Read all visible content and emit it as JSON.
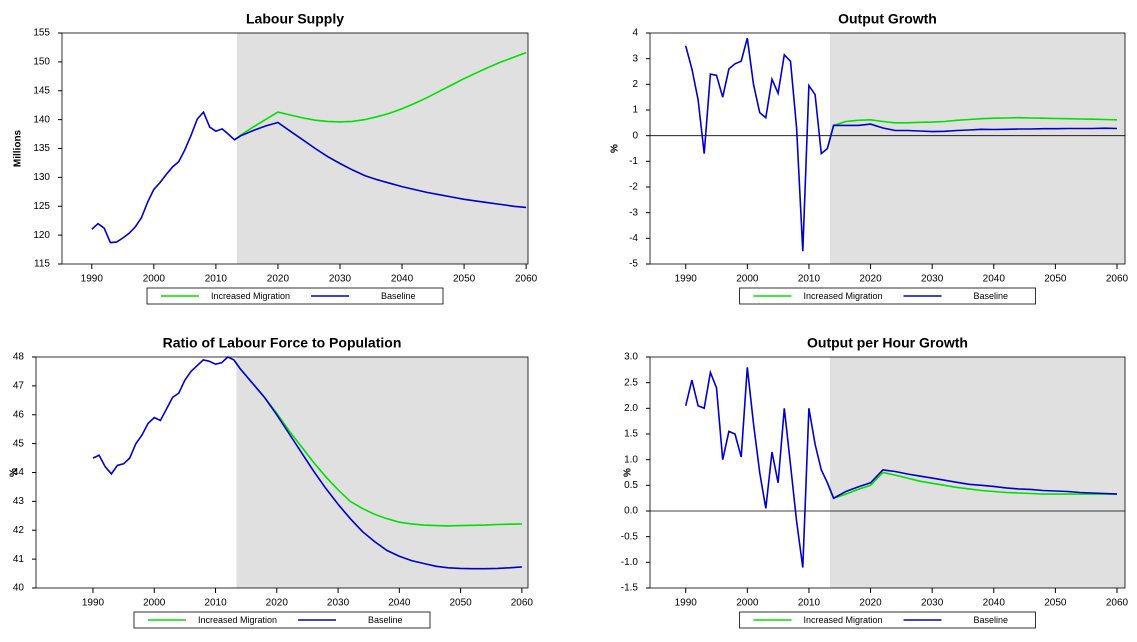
{
  "chart_data": [
    {
      "type": "line",
      "title": "Labour Supply",
      "y_label": "Millions",
      "xlim": [
        1985.2,
        2060.3
      ],
      "ylim": [
        115,
        155
      ],
      "xticks": [
        1990,
        2000,
        2010,
        2020,
        2030,
        2040,
        2050,
        2060
      ],
      "yticks": [
        115,
        120,
        125,
        130,
        135,
        140,
        145,
        150,
        155
      ],
      "shade_from": 2013.4,
      "shade_color": "#e0e0e0",
      "x": [
        1990,
        1991,
        1992,
        1993,
        1994,
        1995,
        1996,
        1997,
        1998,
        1999,
        2000,
        2001,
        2002,
        2003,
        2004,
        2005,
        2006,
        2007,
        2008,
        2009,
        2010,
        2011,
        2012,
        2013,
        2014,
        2016,
        2018,
        2020,
        2022,
        2024,
        2026,
        2028,
        2030,
        2032,
        2034,
        2036,
        2038,
        2040,
        2042,
        2044,
        2046,
        2048,
        2050,
        2052,
        2054,
        2056,
        2058,
        2060
      ],
      "series": [
        {
          "name": "Increased Migration",
          "color": "#00e000",
          "values": [
            null,
            null,
            null,
            null,
            null,
            null,
            null,
            null,
            null,
            null,
            null,
            null,
            null,
            null,
            null,
            null,
            null,
            null,
            null,
            null,
            null,
            null,
            null,
            136.5,
            137.3,
            138.7,
            140.0,
            141.3,
            140.8,
            140.3,
            139.9,
            139.7,
            139.6,
            139.7,
            140.0,
            140.5,
            141.1,
            141.9,
            142.8,
            143.8,
            144.9,
            146.0,
            147.1,
            148.1,
            149.1,
            150.0,
            150.8,
            151.6
          ]
        },
        {
          "name": "Baseline",
          "color": "#0000cc",
          "values": [
            121,
            122,
            121.2,
            118.7,
            118.8,
            119.5,
            120.3,
            121.4,
            123,
            125.7,
            127.9,
            129.1,
            130.5,
            131.8,
            132.7,
            134.8,
            137.3,
            140.1,
            141.3,
            138.7,
            138,
            138.4,
            137.5,
            136.5,
            137.2,
            138.1,
            138.9,
            139.5,
            138.0,
            136.5,
            135.0,
            133.6,
            132.4,
            131.3,
            130.3,
            129.6,
            129.0,
            128.4,
            127.9,
            127.4,
            127.0,
            126.6,
            126.2,
            125.9,
            125.6,
            125.3,
            125.0,
            124.8
          ]
        }
      ]
    },
    {
      "type": "line",
      "title": "Output Growth",
      "y_label": "%",
      "xlim": [
        1984.2,
        2061.3
      ],
      "ylim": [
        -5,
        4
      ],
      "xticks": [
        1990,
        2000,
        2010,
        2020,
        2030,
        2040,
        2050,
        2060
      ],
      "yticks": [
        -5,
        -4,
        -3,
        -2,
        -1,
        0,
        1,
        2,
        3,
        4
      ],
      "shade_from": 2013.4,
      "shade_color": "#e0e0e0",
      "zero_line": true,
      "x": [
        1990,
        1991,
        1992,
        1993,
        1994,
        1995,
        1996,
        1997,
        1998,
        1999,
        2000,
        2001,
        2002,
        2003,
        2004,
        2005,
        2006,
        2007,
        2008,
        2009,
        2010,
        2011,
        2012,
        2013,
        2014,
        2016,
        2018,
        2020,
        2022,
        2024,
        2026,
        2028,
        2030,
        2032,
        2034,
        2036,
        2038,
        2040,
        2042,
        2044,
        2046,
        2048,
        2050,
        2052,
        2054,
        2056,
        2058,
        2060
      ],
      "series": [
        {
          "name": "Increased Migration",
          "color": "#00e000",
          "values": [
            null,
            null,
            null,
            null,
            null,
            null,
            null,
            null,
            null,
            null,
            null,
            null,
            null,
            null,
            null,
            null,
            null,
            null,
            null,
            null,
            null,
            null,
            null,
            -0.5,
            0.4,
            0.55,
            0.6,
            0.62,
            0.55,
            0.5,
            0.5,
            0.52,
            0.53,
            0.55,
            0.6,
            0.63,
            0.66,
            0.68,
            0.69,
            0.7,
            0.69,
            0.68,
            0.67,
            0.66,
            0.65,
            0.64,
            0.63,
            0.62
          ]
        },
        {
          "name": "Baseline",
          "color": "#0000cc",
          "values": [
            3.5,
            2.6,
            1.4,
            -0.7,
            2.4,
            2.35,
            1.5,
            2.6,
            2.8,
            2.9,
            3.8,
            2.0,
            0.9,
            0.7,
            2.2,
            1.65,
            3.15,
            2.9,
            0.3,
            -4.5,
            1.95,
            1.6,
            -0.7,
            -0.5,
            0.4,
            0.4,
            0.4,
            0.45,
            0.3,
            0.2,
            0.2,
            0.18,
            0.16,
            0.17,
            0.2,
            0.22,
            0.25,
            0.24,
            0.25,
            0.26,
            0.26,
            0.27,
            0.27,
            0.28,
            0.28,
            0.28,
            0.29,
            0.28
          ]
        }
      ]
    },
    {
      "type": "line",
      "title": "Ratio of Labour Force to Population",
      "y_label": "%",
      "xlim": [
        1980.7,
        2061
      ],
      "ylim": [
        40,
        48
      ],
      "xticks": [
        1990,
        2000,
        2010,
        2020,
        2030,
        2040,
        2050,
        2060
      ],
      "yticks": [
        40,
        41,
        42,
        43,
        44,
        45,
        46,
        47,
        48
      ],
      "shade_from": 2013.4,
      "shade_color": "#e0e0e0",
      "x": [
        1990,
        1991,
        1992,
        1993,
        1994,
        1995,
        1996,
        1997,
        1998,
        1999,
        2000,
        2001,
        2002,
        2003,
        2004,
        2005,
        2006,
        2007,
        2008,
        2009,
        2010,
        2011,
        2012,
        2013,
        2014,
        2016,
        2018,
        2020,
        2022,
        2024,
        2026,
        2028,
        2030,
        2032,
        2034,
        2036,
        2038,
        2040,
        2042,
        2044,
        2046,
        2048,
        2050,
        2052,
        2054,
        2056,
        2058,
        2060
      ],
      "series": [
        {
          "name": "Increased Migration",
          "color": "#00e000",
          "values": [
            null,
            null,
            null,
            null,
            null,
            null,
            null,
            null,
            null,
            null,
            null,
            null,
            null,
            null,
            null,
            null,
            null,
            null,
            null,
            null,
            null,
            null,
            null,
            47.9,
            47.6,
            47.1,
            46.6,
            46.05,
            45.45,
            44.9,
            44.35,
            43.85,
            43.4,
            43.0,
            42.75,
            42.55,
            42.4,
            42.28,
            42.22,
            42.18,
            42.16,
            42.15,
            42.16,
            42.17,
            42.18,
            42.2,
            42.21,
            42.22
          ]
        },
        {
          "name": "Baseline",
          "color": "#0000cc",
          "values": [
            44.5,
            44.6,
            44.2,
            43.95,
            44.25,
            44.3,
            44.5,
            45.0,
            45.3,
            45.7,
            45.9,
            45.8,
            46.2,
            46.6,
            46.75,
            47.2,
            47.5,
            47.7,
            47.9,
            47.85,
            47.75,
            47.8,
            48.0,
            47.9,
            47.6,
            47.1,
            46.6,
            46.0,
            45.35,
            44.7,
            44.05,
            43.45,
            42.9,
            42.4,
            41.95,
            41.6,
            41.3,
            41.1,
            40.95,
            40.85,
            40.75,
            40.7,
            40.68,
            40.67,
            40.67,
            40.68,
            40.7,
            40.73
          ]
        }
      ]
    },
    {
      "type": "line",
      "title": "Output per Hour Growth",
      "y_label": "%",
      "xlim": [
        1984.2,
        2061.3
      ],
      "ylim": [
        -1.5,
        3
      ],
      "xticks": [
        1990,
        2000,
        2010,
        2020,
        2030,
        2040,
        2050,
        2060
      ],
      "yticks": [
        {
          "value": -1.5,
          "label": "-1.5"
        },
        {
          "value": -1,
          "label": "-1.0"
        },
        {
          "value": -0.5,
          "label": "-0.5"
        },
        {
          "value": 0,
          "label": "0.0"
        },
        {
          "value": 0.5,
          "label": "0.5"
        },
        {
          "value": 1,
          "label": "1.0"
        },
        {
          "value": 1.5,
          "label": "1.5"
        },
        {
          "value": 2,
          "label": "2.0"
        },
        {
          "value": 2.5,
          "label": "2.5"
        },
        {
          "value": 3,
          "label": "3.0"
        }
      ],
      "shade_from": 2013.4,
      "shade_color": "#e0e0e0",
      "zero_line": true,
      "x": [
        1990,
        1991,
        1992,
        1993,
        1994,
        1995,
        1996,
        1997,
        1998,
        1999,
        2000,
        2001,
        2002,
        2003,
        2004,
        2005,
        2006,
        2007,
        2008,
        2009,
        2010,
        2011,
        2012,
        2013,
        2014,
        2016,
        2018,
        2020,
        2022,
        2024,
        2026,
        2028,
        2030,
        2032,
        2034,
        2036,
        2038,
        2040,
        2042,
        2044,
        2046,
        2048,
        2050,
        2052,
        2054,
        2056,
        2058,
        2060
      ],
      "series": [
        {
          "name": "Increased Migration",
          "color": "#00e000",
          "values": [
            null,
            null,
            null,
            null,
            null,
            null,
            null,
            null,
            null,
            null,
            null,
            null,
            null,
            null,
            null,
            null,
            null,
            null,
            null,
            null,
            null,
            null,
            null,
            0.55,
            0.25,
            0.33,
            0.42,
            0.5,
            0.75,
            0.7,
            0.64,
            0.58,
            0.54,
            0.5,
            0.46,
            0.43,
            0.4,
            0.38,
            0.36,
            0.35,
            0.34,
            0.33,
            0.33,
            0.33,
            0.33,
            0.33,
            0.33,
            0.33
          ]
        },
        {
          "name": "Baseline",
          "color": "#0000cc",
          "values": [
            2.05,
            2.55,
            2.05,
            2.0,
            2.7,
            2.4,
            1.0,
            1.55,
            1.5,
            1.05,
            2.8,
            1.7,
            0.75,
            0.05,
            1.15,
            0.55,
            2.0,
            0.9,
            -0.2,
            -1.1,
            2.0,
            1.3,
            0.8,
            0.55,
            0.25,
            0.38,
            0.47,
            0.55,
            0.8,
            0.77,
            0.72,
            0.68,
            0.64,
            0.6,
            0.56,
            0.52,
            0.5,
            0.48,
            0.45,
            0.43,
            0.42,
            0.4,
            0.39,
            0.38,
            0.36,
            0.35,
            0.34,
            0.33
          ]
        }
      ]
    }
  ]
}
